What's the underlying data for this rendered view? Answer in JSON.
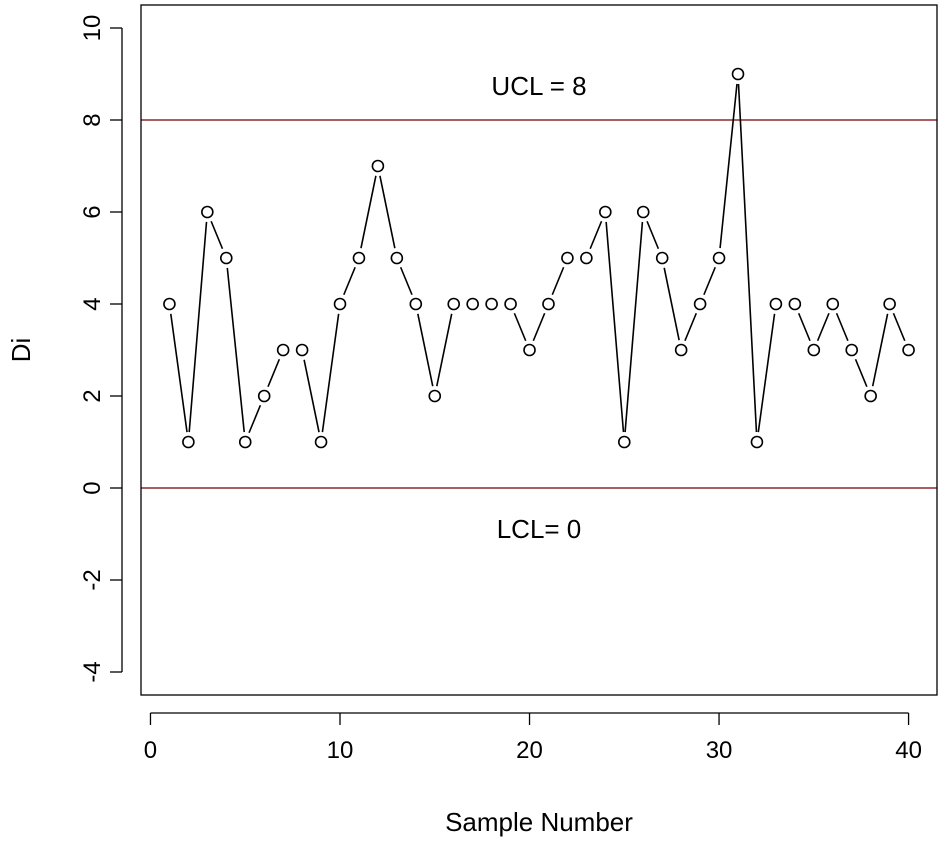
{
  "chart_data": {
    "type": "line",
    "xlabel": "Sample Number",
    "ylabel": "Di",
    "xlim": [
      -0.5,
      41.5
    ],
    "ylim": [
      -4.5,
      10.5
    ],
    "xticks": [
      0,
      10,
      20,
      30,
      40
    ],
    "yticks": [
      -4,
      -2,
      0,
      2,
      4,
      6,
      8,
      10
    ],
    "grid": false,
    "x": [
      1,
      2,
      3,
      4,
      5,
      6,
      7,
      8,
      9,
      10,
      11,
      12,
      13,
      14,
      15,
      16,
      17,
      18,
      19,
      20,
      21,
      22,
      23,
      24,
      25,
      26,
      27,
      28,
      29,
      30,
      31,
      32,
      33,
      34,
      35,
      36,
      37,
      38,
      39,
      40
    ],
    "series": [
      {
        "values": [
          4,
          1,
          6,
          5,
          1,
          2,
          3,
          3,
          1,
          4,
          5,
          7,
          5,
          4,
          2,
          4,
          4,
          4,
          4,
          3,
          4,
          5,
          5,
          6,
          1,
          6,
          5,
          3,
          4,
          5,
          9,
          1,
          4,
          4,
          3,
          4,
          3,
          2,
          4,
          3
        ]
      }
    ],
    "control_lines": [
      {
        "label": "UCL = 8",
        "value": 8,
        "color": "#8B2A2A"
      },
      {
        "label": "LCL= 0",
        "value": 0,
        "color": "#8B2A2A"
      }
    ]
  }
}
